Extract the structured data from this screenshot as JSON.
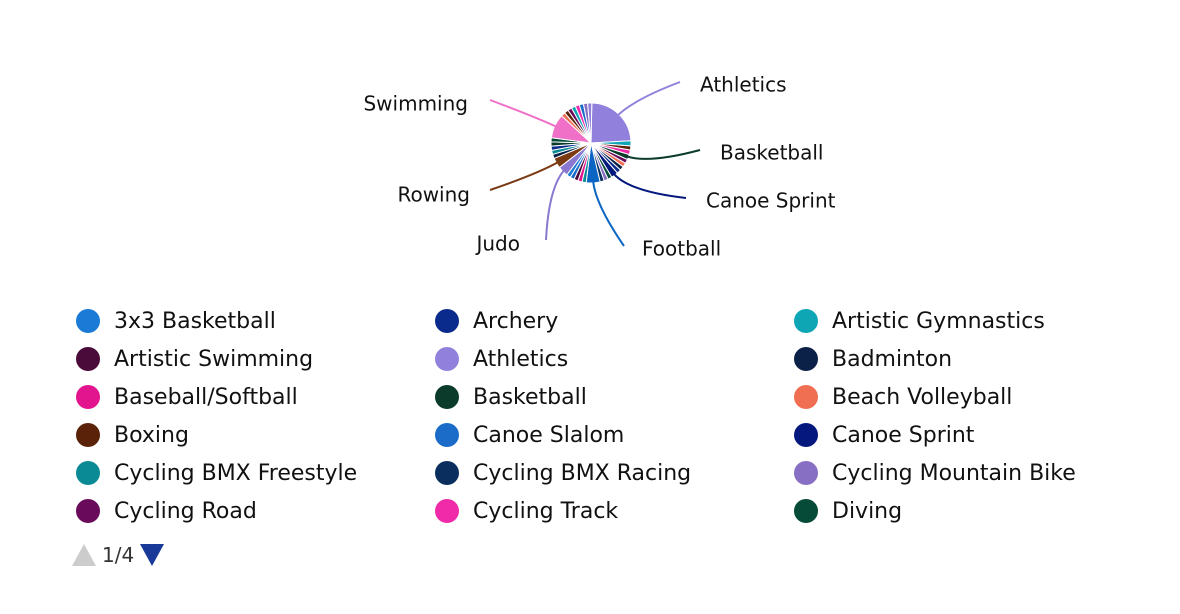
{
  "chart_data": {
    "type": "pie",
    "slices": [
      {
        "label": "Athletics",
        "value": 17,
        "color": "#9281dc",
        "labeled": true
      },
      {
        "label": "Artistic Gymnastics",
        "value": 1.5,
        "color": "#0ea5b5"
      },
      {
        "label": "Boxing",
        "value": 1.2,
        "color": "#5a2208"
      },
      {
        "label": "Cycling Track",
        "value": 1.3,
        "color": "#f02aa8"
      },
      {
        "label": "Basketball",
        "value": 1.5,
        "color": "#0b3b2a",
        "labeled": true
      },
      {
        "label": "Cycling Road",
        "value": 1.2,
        "color": "#6a0a5a"
      },
      {
        "label": "Beach Volleyball",
        "value": 1.2,
        "color": "#f06e52"
      },
      {
        "label": "Badminton",
        "value": 1.2,
        "color": "#0c2147"
      },
      {
        "label": "Archery",
        "value": 1.2,
        "color": "#0a2a8c"
      },
      {
        "label": "Canoe Sprint",
        "value": 2,
        "color": "#04187e",
        "labeled": true
      },
      {
        "label": "Diving",
        "value": 1.2,
        "color": "#064a38"
      },
      {
        "label": "Cycling Mountain Bike",
        "value": 1.2,
        "color": "#8770c4"
      },
      {
        "label": "Cycling BMX Racing",
        "value": 1.2,
        "color": "#0a2f5e"
      },
      {
        "label": "Football",
        "value": 4,
        "color": "#0a66c2",
        "labeled": true
      },
      {
        "label": "Cycling BMX Freestyle",
        "value": 1.2,
        "color": "#0a8a94"
      },
      {
        "label": "Baseball/Softball",
        "value": 1.2,
        "color": "#e2158e"
      },
      {
        "label": "Artistic Swimming",
        "value": 1.2,
        "color": "#4a0a3a"
      },
      {
        "label": "Canoe Slalom",
        "value": 1.2,
        "color": "#1a6cc8"
      },
      {
        "label": "3x3 Basketball",
        "value": 1.2,
        "color": "#1a7ad6"
      },
      {
        "label": "Judo",
        "value": 3,
        "color": "#8a78d0",
        "labeled": true
      },
      {
        "label": "Rowing",
        "value": 3,
        "color": "#7a3a14",
        "labeled": true
      },
      {
        "label": "Badminton",
        "value": 1.2,
        "color": "#0c2147"
      },
      {
        "label": "Cycling BMX Freestyle",
        "value": 1.2,
        "color": "#0a8a94"
      },
      {
        "label": "Archery",
        "value": 1.2,
        "color": "#0a2a8c"
      },
      {
        "label": "Basketball",
        "value": 1.2,
        "color": "#0b3b2a"
      },
      {
        "label": "Diving",
        "value": 1.2,
        "color": "#064a38"
      },
      {
        "label": "Swimming",
        "value": 7,
        "color": "#f070c8",
        "labeled": true
      },
      {
        "label": "Beach Volleyball",
        "value": 1.2,
        "color": "#f06e52"
      },
      {
        "label": "Boxing",
        "value": 1.2,
        "color": "#5a2208"
      },
      {
        "label": "Cycling Road",
        "value": 1.2,
        "color": "#6a0a5a"
      },
      {
        "label": "Artistic Gymnastics",
        "value": 1.2,
        "color": "#0ea5b5"
      },
      {
        "label": "Cycling Track",
        "value": 1.2,
        "color": "#f02aa8"
      },
      {
        "label": "Canoe Slalom",
        "value": 1.2,
        "color": "#1a6cc8"
      },
      {
        "label": "Cycling Mountain Bike",
        "value": 1.2,
        "color": "#8770c4"
      },
      {
        "label": "Athletics",
        "value": 1.2,
        "color": "#9281dc"
      }
    ],
    "callout_labels": [
      "Athletics",
      "Basketball",
      "Canoe Sprint",
      "Football",
      "Judo",
      "Rowing",
      "Swimming"
    ],
    "legend": [
      {
        "label": "3x3 Basketball",
        "color": "#1a7ad6"
      },
      {
        "label": "Archery",
        "color": "#0a2a8c"
      },
      {
        "label": "Artistic Gymnastics",
        "color": "#0ea5b5"
      },
      {
        "label": "Artistic Swimming",
        "color": "#4a0a3a"
      },
      {
        "label": "Athletics",
        "color": "#9281dc"
      },
      {
        "label": "Badminton",
        "color": "#0c2147"
      },
      {
        "label": "Baseball/Softball",
        "color": "#e2158e"
      },
      {
        "label": "Basketball",
        "color": "#0b3b2a"
      },
      {
        "label": "Beach Volleyball",
        "color": "#f06e52"
      },
      {
        "label": "Boxing",
        "color": "#5a2208"
      },
      {
        "label": "Canoe Slalom",
        "color": "#1a6cc8"
      },
      {
        "label": "Canoe Sprint",
        "color": "#04187e"
      },
      {
        "label": "Cycling BMX Freestyle",
        "color": "#0a8a94"
      },
      {
        "label": "Cycling BMX Racing",
        "color": "#0a2f5e"
      },
      {
        "label": "Cycling Mountain Bike",
        "color": "#8770c4"
      },
      {
        "label": "Cycling Road",
        "color": "#6a0a5a"
      },
      {
        "label": "Cycling Track",
        "color": "#f02aa8"
      },
      {
        "label": "Diving",
        "color": "#064a38"
      }
    ],
    "legend_placement": "bottom",
    "legend_pager": "1/4"
  },
  "pager": {
    "text": "1/4",
    "up_color": "#cccccc",
    "down_color": "#1a3a9a"
  }
}
